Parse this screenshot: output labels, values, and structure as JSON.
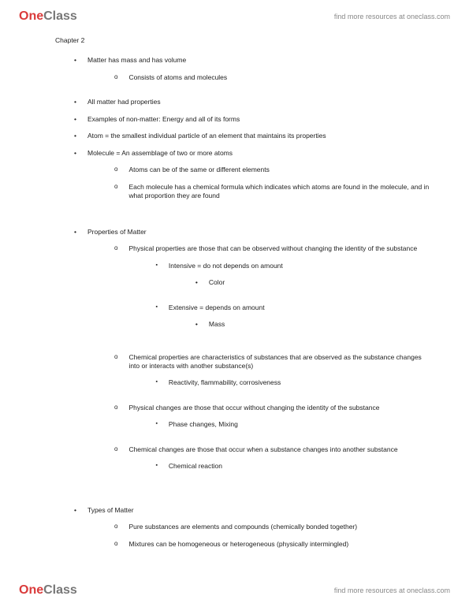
{
  "brand": {
    "part1": "One",
    "part2": "Class"
  },
  "tagline": "find more resources at oneclass.com",
  "chapter_title": "Chapter 2",
  "colors": {
    "brand_red": "#da3b3b",
    "brand_grey": "#777777",
    "text": "#222222",
    "tagline": "#888888",
    "background": "#ffffff"
  },
  "content": {
    "b1": "Matter has mass and has volume",
    "b1_1": "Consists of atoms and molecules",
    "b2": "All matter had properties",
    "b3": "Examples of non-matter: Energy and all of its forms",
    "b4": "Atom = the smallest individual particle of an element that maintains its properties",
    "b5": "Molecule = An assemblage of two or more atoms",
    "b5_1": "Atoms can be of the same or different elements",
    "b5_2": "Each molecule has a chemical formula which indicates which atoms are found in the molecule, and in what proportion they are found",
    "b6": "Properties of Matter",
    "b6_1": "Physical properties are those that can be observed without changing the identity of the substance",
    "b6_1_1": "Intensive = do not depends on amount",
    "b6_1_1_1": "Color",
    "b6_1_2": "Extensive = depends on amount",
    "b6_1_2_1": "Mass",
    "b6_2": "Chemical properties are characteristics of substances that are observed as the substance changes into or interacts with another substance(s)",
    "b6_2_1": "Reactivity, flammability, corrosiveness",
    "b6_3": "Physical changes are those that occur without changing the identity of the substance",
    "b6_3_1": "Phase changes, Mixing",
    "b6_4": "Chemical changes are those that occur when a substance changes into another substance",
    "b6_4_1": "Chemical reaction",
    "b7": "Types of Matter",
    "b7_1": "Pure substances are elements and compounds (chemically bonded together)",
    "b7_2": "Mixtures can be homogeneous or heterogeneous (physically intermingled)"
  }
}
